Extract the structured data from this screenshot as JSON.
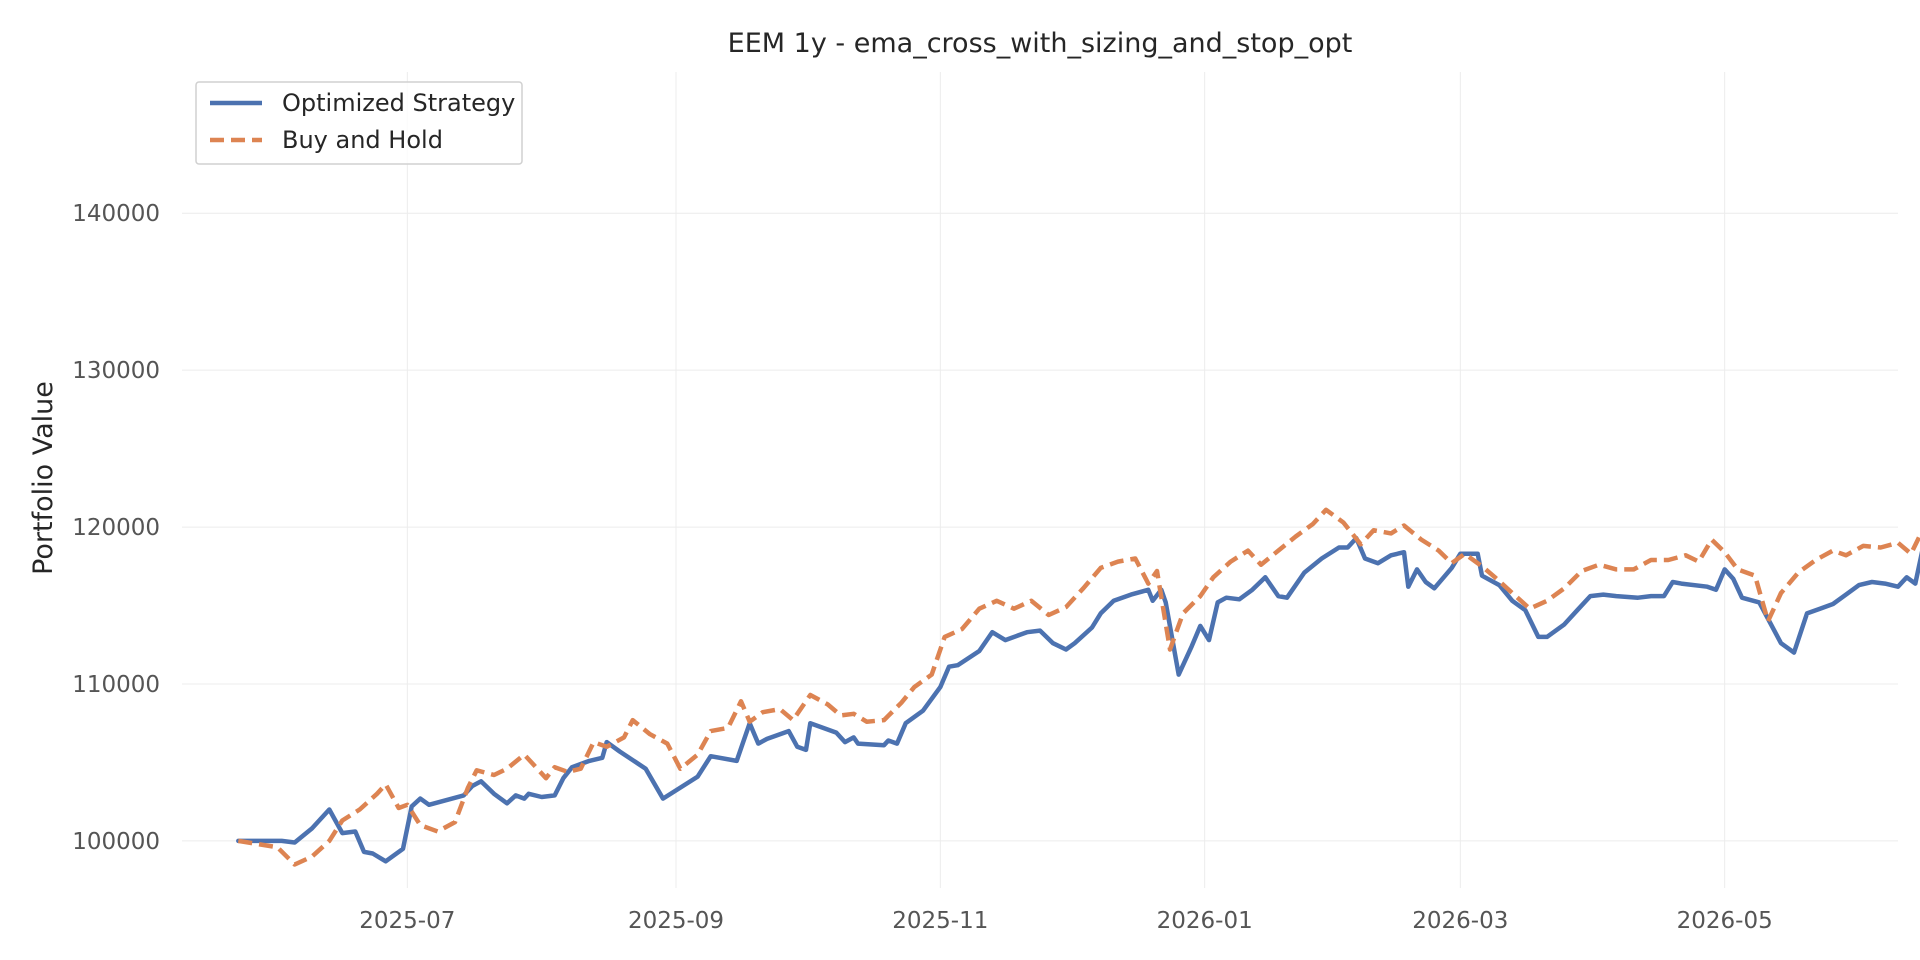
{
  "chart_data": {
    "type": "line",
    "title": "EEM 1y - ema_cross_with_sizing_and_stop_opt",
    "xlabel": "",
    "ylabel": "Portfolio Value",
    "xlim": [
      "2025-05-10",
      "2026-06-10"
    ],
    "ylim": [
      97000,
      149000
    ],
    "grid": true,
    "legend": "upper-left",
    "x_ticks": [
      "2025-07-01",
      "2025-09-01",
      "2025-11-01",
      "2026-01-01",
      "2026-03-01",
      "2026-05-01"
    ],
    "x_tick_labels": [
      "2025-07",
      "2025-09",
      "2025-11",
      "2026-01",
      "2026-03",
      "2026-05"
    ],
    "y_ticks": [
      100000,
      110000,
      120000,
      130000,
      140000
    ],
    "y_tick_labels": [
      "100000",
      "110000",
      "120000",
      "130000",
      "140000"
    ],
    "series": [
      {
        "name": "Optimized Strategy",
        "color": "#4c72b0",
        "style": "solid",
        "points": [
          [
            "2025-05-23",
            100000
          ],
          [
            "2025-06-02",
            100000
          ],
          [
            "2025-06-05",
            99900
          ],
          [
            "2025-06-09",
            100800
          ],
          [
            "2025-06-13",
            102000
          ],
          [
            "2025-06-16",
            100500
          ],
          [
            "2025-06-19",
            100600
          ],
          [
            "2025-06-21",
            99300
          ],
          [
            "2025-06-23",
            99200
          ],
          [
            "2025-06-26",
            98700
          ],
          [
            "2025-06-30",
            99500
          ],
          [
            "2025-07-02",
            102200
          ],
          [
            "2025-07-04",
            102700
          ],
          [
            "2025-07-06",
            102300
          ],
          [
            "2025-07-14",
            102900
          ],
          [
            "2025-07-16",
            103500
          ],
          [
            "2025-07-18",
            103800
          ],
          [
            "2025-07-21",
            103000
          ],
          [
            "2025-07-24",
            102400
          ],
          [
            "2025-07-26",
            102900
          ],
          [
            "2025-07-28",
            102700
          ],
          [
            "2025-07-29",
            103000
          ],
          [
            "2025-08-01",
            102800
          ],
          [
            "2025-08-04",
            102900
          ],
          [
            "2025-08-06",
            104000
          ],
          [
            "2025-08-08",
            104700
          ],
          [
            "2025-08-12",
            105100
          ],
          [
            "2025-08-15",
            105300
          ],
          [
            "2025-08-16",
            106300
          ],
          [
            "2025-08-19",
            105700
          ],
          [
            "2025-08-25",
            104600
          ],
          [
            "2025-08-29",
            102700
          ],
          [
            "2025-09-06",
            104100
          ],
          [
            "2025-09-09",
            105400
          ],
          [
            "2025-09-15",
            105100
          ],
          [
            "2025-09-18",
            107500
          ],
          [
            "2025-09-20",
            106200
          ],
          [
            "2025-09-22",
            106500
          ],
          [
            "2025-09-27",
            107000
          ],
          [
            "2025-09-29",
            106000
          ],
          [
            "2025-10-01",
            105800
          ],
          [
            "2025-10-02",
            107500
          ],
          [
            "2025-10-08",
            106900
          ],
          [
            "2025-10-10",
            106300
          ],
          [
            "2025-10-12",
            106600
          ],
          [
            "2025-10-13",
            106200
          ],
          [
            "2025-10-19",
            106100
          ],
          [
            "2025-10-20",
            106400
          ],
          [
            "2025-10-22",
            106200
          ],
          [
            "2025-10-24",
            107500
          ],
          [
            "2025-10-28",
            108300
          ],
          [
            "2025-11-01",
            109800
          ],
          [
            "2025-11-03",
            111100
          ],
          [
            "2025-11-05",
            111200
          ],
          [
            "2025-11-10",
            112100
          ],
          [
            "2025-11-13",
            113300
          ],
          [
            "2025-11-16",
            112800
          ],
          [
            "2025-11-21",
            113300
          ],
          [
            "2025-11-24",
            113400
          ],
          [
            "2025-11-27",
            112600
          ],
          [
            "2025-11-30",
            112200
          ],
          [
            "2025-12-02",
            112600
          ],
          [
            "2025-12-06",
            113600
          ],
          [
            "2025-12-08",
            114500
          ],
          [
            "2025-12-11",
            115300
          ],
          [
            "2025-12-15",
            115700
          ],
          [
            "2025-12-19",
            116000
          ],
          [
            "2025-12-20",
            115300
          ],
          [
            "2025-12-22",
            116000
          ],
          [
            "2025-12-23",
            115200
          ],
          [
            "2025-12-26",
            110600
          ],
          [
            "2025-12-29",
            112400
          ],
          [
            "2025-12-31",
            113700
          ],
          [
            "2026-01-02",
            112800
          ],
          [
            "2026-01-04",
            115200
          ],
          [
            "2026-01-06",
            115500
          ],
          [
            "2026-01-09",
            115400
          ],
          [
            "2026-01-12",
            116000
          ],
          [
            "2026-01-15",
            116800
          ],
          [
            "2026-01-18",
            115600
          ],
          [
            "2026-01-20",
            115500
          ],
          [
            "2026-01-24",
            117100
          ],
          [
            "2026-01-28",
            118000
          ],
          [
            "2026-02-01",
            118700
          ],
          [
            "2026-02-03",
            118700
          ],
          [
            "2026-02-05",
            119300
          ],
          [
            "2026-02-07",
            118000
          ],
          [
            "2026-02-10",
            117700
          ],
          [
            "2026-02-13",
            118200
          ],
          [
            "2026-02-16",
            118400
          ],
          [
            "2026-02-17",
            116200
          ],
          [
            "2026-02-19",
            117300
          ],
          [
            "2026-02-21",
            116500
          ],
          [
            "2026-02-23",
            116100
          ],
          [
            "2026-02-27",
            117400
          ],
          [
            "2026-03-01",
            118300
          ],
          [
            "2026-03-05",
            118300
          ],
          [
            "2026-03-06",
            116900
          ],
          [
            "2026-03-10",
            116300
          ],
          [
            "2026-03-13",
            115300
          ],
          [
            "2026-03-16",
            114700
          ],
          [
            "2026-03-19",
            113000
          ],
          [
            "2026-03-21",
            113000
          ],
          [
            "2026-03-25",
            113800
          ],
          [
            "2026-03-28",
            114700
          ],
          [
            "2026-03-31",
            115600
          ],
          [
            "2026-04-03",
            115700
          ],
          [
            "2026-04-06",
            115600
          ],
          [
            "2026-04-11",
            115500
          ],
          [
            "2026-04-14",
            115600
          ],
          [
            "2026-04-17",
            115600
          ],
          [
            "2026-04-19",
            116500
          ],
          [
            "2026-04-21",
            116400
          ],
          [
            "2026-04-27",
            116200
          ],
          [
            "2026-04-29",
            116000
          ],
          [
            "2026-05-01",
            117300
          ],
          [
            "2026-05-03",
            116700
          ],
          [
            "2026-05-05",
            115500
          ],
          [
            "2026-05-09",
            115200
          ],
          [
            "2026-05-14",
            112600
          ],
          [
            "2026-05-17",
            112000
          ],
          [
            "2026-05-20",
            114500
          ],
          [
            "2026-05-23",
            114800
          ],
          [
            "2026-05-26",
            115100
          ],
          [
            "2026-05-29",
            115700
          ],
          [
            "2026-06-01",
            116300
          ],
          [
            "2026-06-04",
            116500
          ],
          [
            "2026-06-07",
            116400
          ],
          [
            "2026-06-10",
            116200
          ],
          [
            "2026-06-12",
            116800
          ],
          [
            "2026-06-14",
            116400
          ],
          [
            "2026-06-16",
            119000
          ]
        ]
      },
      {
        "name": "Buy and Hold",
        "color": "#dd8452",
        "style": "dashed",
        "points": [
          [
            "2025-05-23",
            100000
          ],
          [
            "2025-06-01",
            99600
          ],
          [
            "2025-06-05",
            98500
          ],
          [
            "2025-06-09",
            99000
          ],
          [
            "2025-06-13",
            100000
          ],
          [
            "2025-06-16",
            101300
          ],
          [
            "2025-06-20",
            102000
          ],
          [
            "2025-06-24",
            103000
          ],
          [
            "2025-06-26",
            103600
          ],
          [
            "2025-06-29",
            102100
          ],
          [
            "2025-07-01",
            102300
          ],
          [
            "2025-07-04",
            101000
          ],
          [
            "2025-07-08",
            100600
          ],
          [
            "2025-07-12",
            101200
          ],
          [
            "2025-07-15",
            103400
          ],
          [
            "2025-07-17",
            104500
          ],
          [
            "2025-07-21",
            104200
          ],
          [
            "2025-07-24",
            104600
          ],
          [
            "2025-07-28",
            105500
          ],
          [
            "2025-07-31",
            104600
          ],
          [
            "2025-08-02",
            104000
          ],
          [
            "2025-08-04",
            104700
          ],
          [
            "2025-08-07",
            104400
          ],
          [
            "2025-08-10",
            104600
          ],
          [
            "2025-08-13",
            106300
          ],
          [
            "2025-08-16",
            106000
          ],
          [
            "2025-08-20",
            106600
          ],
          [
            "2025-08-22",
            107700
          ],
          [
            "2025-08-26",
            106800
          ],
          [
            "2025-08-30",
            106200
          ],
          [
            "2025-09-02",
            104600
          ],
          [
            "2025-09-06",
            105500
          ],
          [
            "2025-09-09",
            107000
          ],
          [
            "2025-09-13",
            107200
          ],
          [
            "2025-09-16",
            108900
          ],
          [
            "2025-09-18",
            107600
          ],
          [
            "2025-09-21",
            108200
          ],
          [
            "2025-09-25",
            108400
          ],
          [
            "2025-09-28",
            107700
          ],
          [
            "2025-10-02",
            109300
          ],
          [
            "2025-10-06",
            108700
          ],
          [
            "2025-10-09",
            108000
          ],
          [
            "2025-10-12",
            108100
          ],
          [
            "2025-10-15",
            107600
          ],
          [
            "2025-10-19",
            107700
          ],
          [
            "2025-10-23",
            108800
          ],
          [
            "2025-10-26",
            109800
          ],
          [
            "2025-10-30",
            110600
          ],
          [
            "2025-11-02",
            113000
          ],
          [
            "2025-11-06",
            113500
          ],
          [
            "2025-11-10",
            114800
          ],
          [
            "2025-11-14",
            115300
          ],
          [
            "2025-11-18",
            114800
          ],
          [
            "2025-11-22",
            115300
          ],
          [
            "2025-11-26",
            114400
          ],
          [
            "2025-11-30",
            114900
          ],
          [
            "2025-12-04",
            116100
          ],
          [
            "2025-12-08",
            117400
          ],
          [
            "2025-12-12",
            117800
          ],
          [
            "2025-12-16",
            118000
          ],
          [
            "2025-12-19",
            116400
          ],
          [
            "2025-12-21",
            117200
          ],
          [
            "2025-12-24",
            112200
          ],
          [
            "2025-12-27",
            114500
          ],
          [
            "2025-12-31",
            115600
          ],
          [
            "2026-01-03",
            116800
          ],
          [
            "2026-01-07",
            117800
          ],
          [
            "2026-01-11",
            118500
          ],
          [
            "2026-01-14",
            117600
          ],
          [
            "2026-01-18",
            118500
          ],
          [
            "2026-01-22",
            119400
          ],
          [
            "2026-01-26",
            120200
          ],
          [
            "2026-01-29",
            121100
          ],
          [
            "2026-02-02",
            120300
          ],
          [
            "2026-02-06",
            118900
          ],
          [
            "2026-02-09",
            119800
          ],
          [
            "2026-02-13",
            119600
          ],
          [
            "2026-02-16",
            120100
          ],
          [
            "2026-02-20",
            119200
          ],
          [
            "2026-02-24",
            118500
          ],
          [
            "2026-02-27",
            117700
          ],
          [
            "2026-03-02",
            118300
          ],
          [
            "2026-03-06",
            117500
          ],
          [
            "2026-03-09",
            116800
          ],
          [
            "2026-03-13",
            115800
          ],
          [
            "2026-03-17",
            114800
          ],
          [
            "2026-03-21",
            115300
          ],
          [
            "2026-03-25",
            116100
          ],
          [
            "2026-03-29",
            117200
          ],
          [
            "2026-04-02",
            117600
          ],
          [
            "2026-04-06",
            117300
          ],
          [
            "2026-04-10",
            117300
          ],
          [
            "2026-04-14",
            117900
          ],
          [
            "2026-04-18",
            117900
          ],
          [
            "2026-04-22",
            118200
          ],
          [
            "2026-04-25",
            117800
          ],
          [
            "2026-04-28",
            119200
          ],
          [
            "2026-05-01",
            118400
          ],
          [
            "2026-05-04",
            117300
          ],
          [
            "2026-05-08",
            116900
          ],
          [
            "2026-05-11",
            114000
          ],
          [
            "2026-05-14",
            115800
          ],
          [
            "2026-05-18",
            117100
          ],
          [
            "2026-05-22",
            117900
          ],
          [
            "2026-05-26",
            118500
          ],
          [
            "2026-05-29",
            118200
          ],
          [
            "2026-06-02",
            118800
          ],
          [
            "2026-06-06",
            118700
          ],
          [
            "2026-06-10",
            119000
          ],
          [
            "2026-06-13",
            118300
          ],
          [
            "2026-06-16",
            120000
          ]
        ]
      }
    ]
  }
}
